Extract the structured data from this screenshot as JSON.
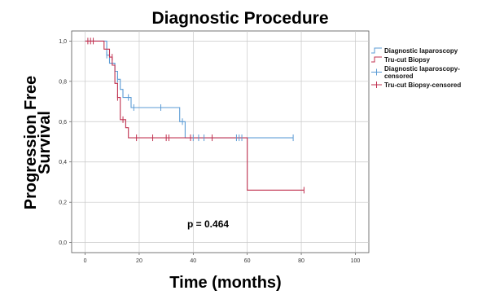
{
  "chart_data": {
    "type": "line",
    "subtype": "kaplan-meier step plot",
    "title": "Diagnostic Procedure",
    "xlabel": "Time (months)",
    "ylabel_lines": [
      "Progression Free",
      "Survival"
    ],
    "xlim": [
      -5,
      105
    ],
    "ylim": [
      -0.05,
      1.05
    ],
    "x_ticks": [
      0,
      20,
      40,
      60,
      80,
      100
    ],
    "y_ticks": [
      0.0,
      0.2,
      0.4,
      0.6,
      0.8,
      1.0
    ],
    "y_tick_labels": [
      "0,0",
      "0,2",
      "0,4",
      "0,6",
      "0,8",
      "1,0"
    ],
    "grid": true,
    "legend_position": "right",
    "annotation": "p = 0.464",
    "series": [
      {
        "name": "Diagnostic laparoscopy",
        "color": "#5b9bd5",
        "steps": [
          [
            0,
            1.0
          ],
          [
            8,
            1.0
          ],
          [
            8,
            0.93
          ],
          [
            9,
            0.93
          ],
          [
            9,
            0.89
          ],
          [
            11,
            0.89
          ],
          [
            11,
            0.85
          ],
          [
            12,
            0.85
          ],
          [
            12,
            0.81
          ],
          [
            13,
            0.81
          ],
          [
            13,
            0.76
          ],
          [
            14,
            0.76
          ],
          [
            14,
            0.72
          ],
          [
            17,
            0.72
          ],
          [
            17,
            0.67
          ],
          [
            35,
            0.67
          ],
          [
            35,
            0.6
          ],
          [
            37,
            0.6
          ],
          [
            37,
            0.52
          ],
          [
            77,
            0.52
          ]
        ]
      },
      {
        "name": "Tru-cut Biopsy",
        "color": "#c0304f",
        "steps": [
          [
            0,
            1.0
          ],
          [
            7,
            1.0
          ],
          [
            7,
            0.96
          ],
          [
            9,
            0.96
          ],
          [
            9,
            0.92
          ],
          [
            10,
            0.92
          ],
          [
            10,
            0.88
          ],
          [
            11,
            0.88
          ],
          [
            11,
            0.79
          ],
          [
            12,
            0.79
          ],
          [
            12,
            0.72
          ],
          [
            13,
            0.72
          ],
          [
            13,
            0.61
          ],
          [
            15,
            0.61
          ],
          [
            15,
            0.57
          ],
          [
            16,
            0.57
          ],
          [
            16,
            0.52
          ],
          [
            60,
            0.52
          ],
          [
            60,
            0.26
          ],
          [
            81,
            0.26
          ]
        ]
      },
      {
        "name": "Diagnostic laparoscopy-censored",
        "color": "#5b9bd5",
        "points": [
          [
            8,
            0.93
          ],
          [
            12,
            0.81
          ],
          [
            16,
            0.72
          ],
          [
            18,
            0.67
          ],
          [
            28,
            0.67
          ],
          [
            36,
            0.6
          ],
          [
            40,
            0.52
          ],
          [
            42,
            0.52
          ],
          [
            44,
            0.52
          ],
          [
            56,
            0.52
          ],
          [
            57,
            0.52
          ],
          [
            58,
            0.52
          ],
          [
            77,
            0.52
          ]
        ]
      },
      {
        "name": "Tru-cut Biopsy-censored",
        "color": "#c0304f",
        "points": [
          [
            1,
            1.0
          ],
          [
            2,
            1.0
          ],
          [
            3,
            1.0
          ],
          [
            10,
            0.92
          ],
          [
            12,
            0.72
          ],
          [
            14,
            0.61
          ],
          [
            19,
            0.52
          ],
          [
            25,
            0.52
          ],
          [
            30,
            0.52
          ],
          [
            31,
            0.52
          ],
          [
            39,
            0.52
          ],
          [
            47,
            0.52
          ],
          [
            81,
            0.26
          ]
        ]
      }
    ],
    "legend": [
      {
        "label": "Diagnostic laparoscopy",
        "color": "#5b9bd5",
        "kind": "line"
      },
      {
        "label": "Tru-cut Biopsy",
        "color": "#c0304f",
        "kind": "line"
      },
      {
        "label_lines": [
          "Diagnostic laparoscopy-",
          "censored"
        ],
        "color": "#5b9bd5",
        "kind": "censor"
      },
      {
        "label": "Tru-cut Biopsy-censored",
        "color": "#c0304f",
        "kind": "censor"
      }
    ]
  }
}
